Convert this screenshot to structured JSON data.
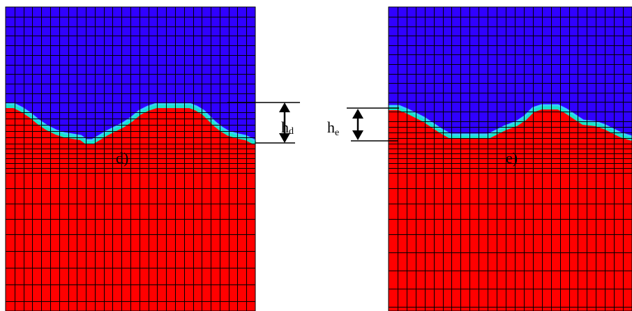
{
  "panels": [
    {
      "id": "d",
      "label": "d)",
      "height_label_main": "h",
      "height_label_sub": "d",
      "colors": {
        "top": "#3000ff",
        "bottom": "#ff0000",
        "interface_outer": "#19e6c8",
        "interface_inner": "#35d0ff",
        "grid": "#000000"
      }
    },
    {
      "id": "e",
      "label": "e)",
      "height_label_main": "h",
      "height_label_sub": "e",
      "colors": {
        "top": "#3000ff",
        "bottom": "#ff0000",
        "interface_outer": "#19e6c8",
        "interface_inner": "#35d0ff",
        "grid": "#000000"
      }
    }
  ]
}
